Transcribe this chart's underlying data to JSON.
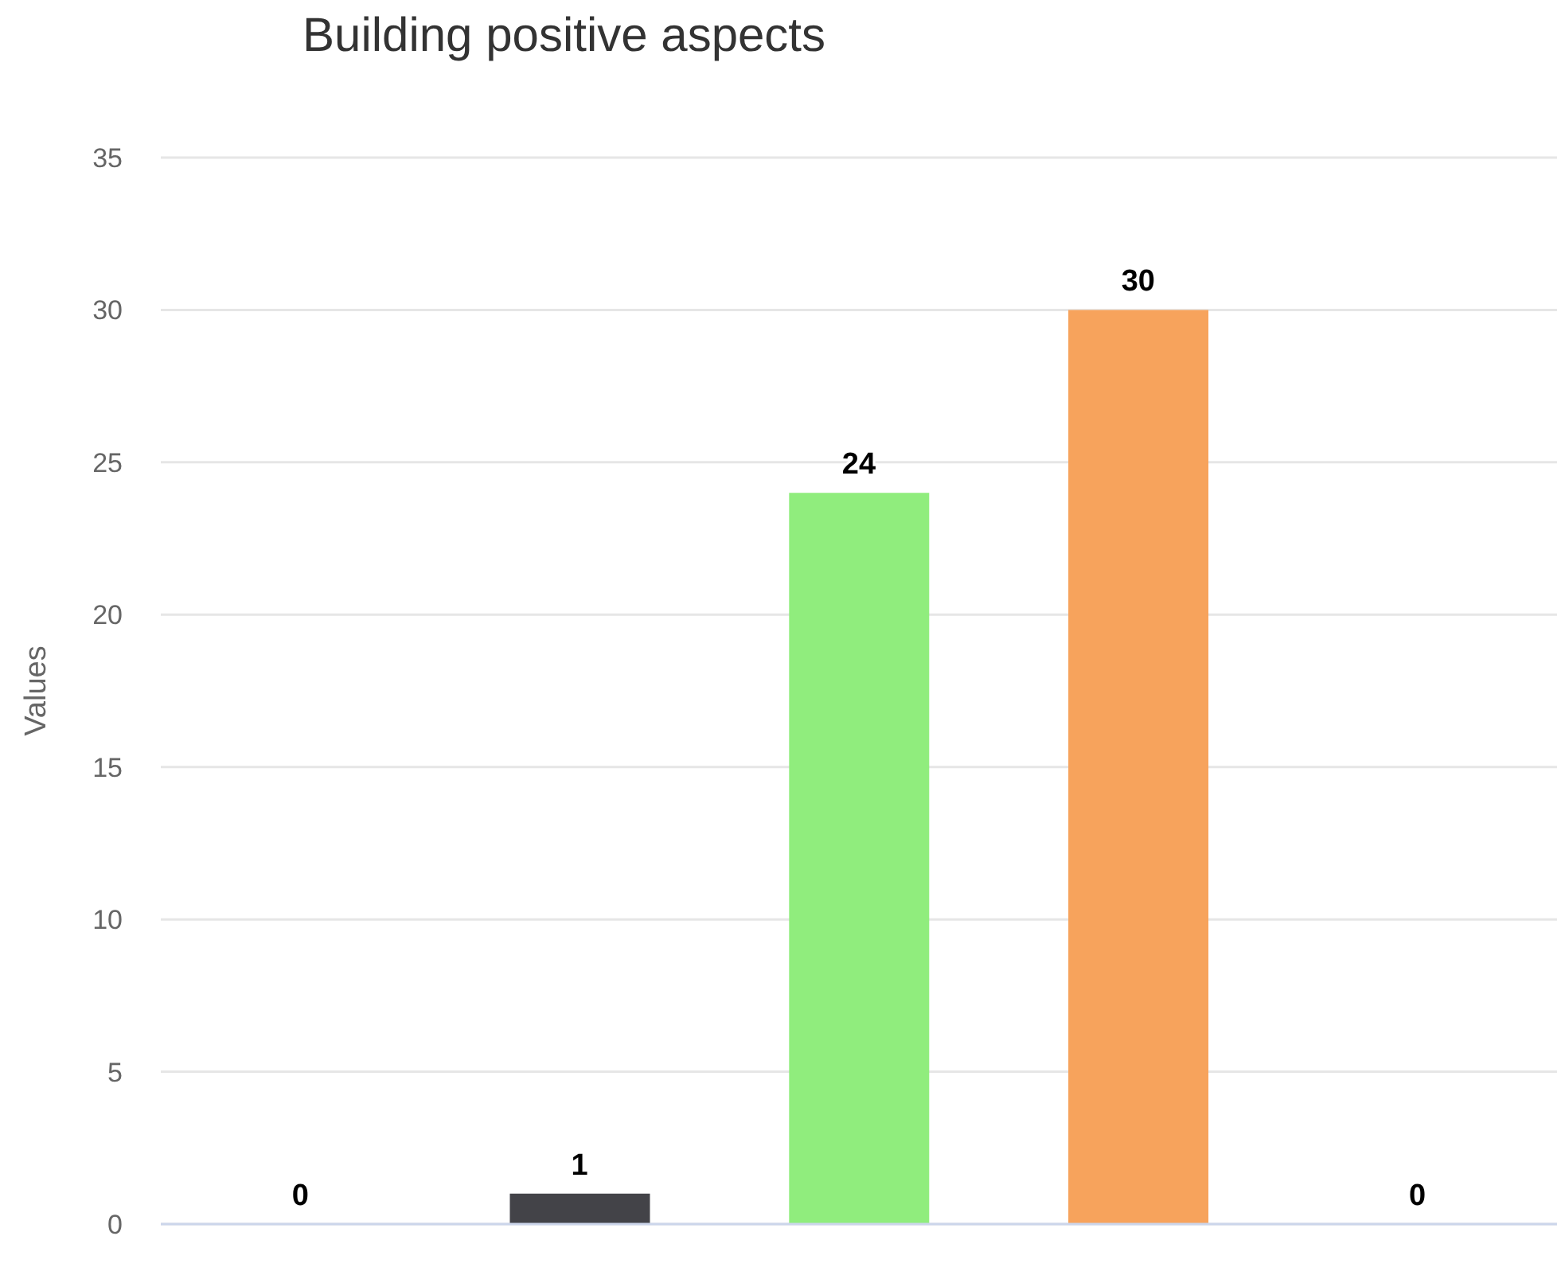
{
  "chart_data": {
    "type": "bar",
    "title": "Building positive aspects",
    "ylabel": "Values",
    "categories": [
      null,
      null,
      null,
      null,
      null
    ],
    "values": [
      0,
      1,
      24,
      30,
      0
    ],
    "colors": [
      null,
      "#434348",
      "#90ed7d",
      "#f7a35c",
      null
    ],
    "ylim": [
      0,
      35
    ],
    "yticks": [
      0,
      5,
      10,
      15,
      20,
      25,
      30,
      35
    ],
    "grid": "y",
    "data_labels": true
  }
}
